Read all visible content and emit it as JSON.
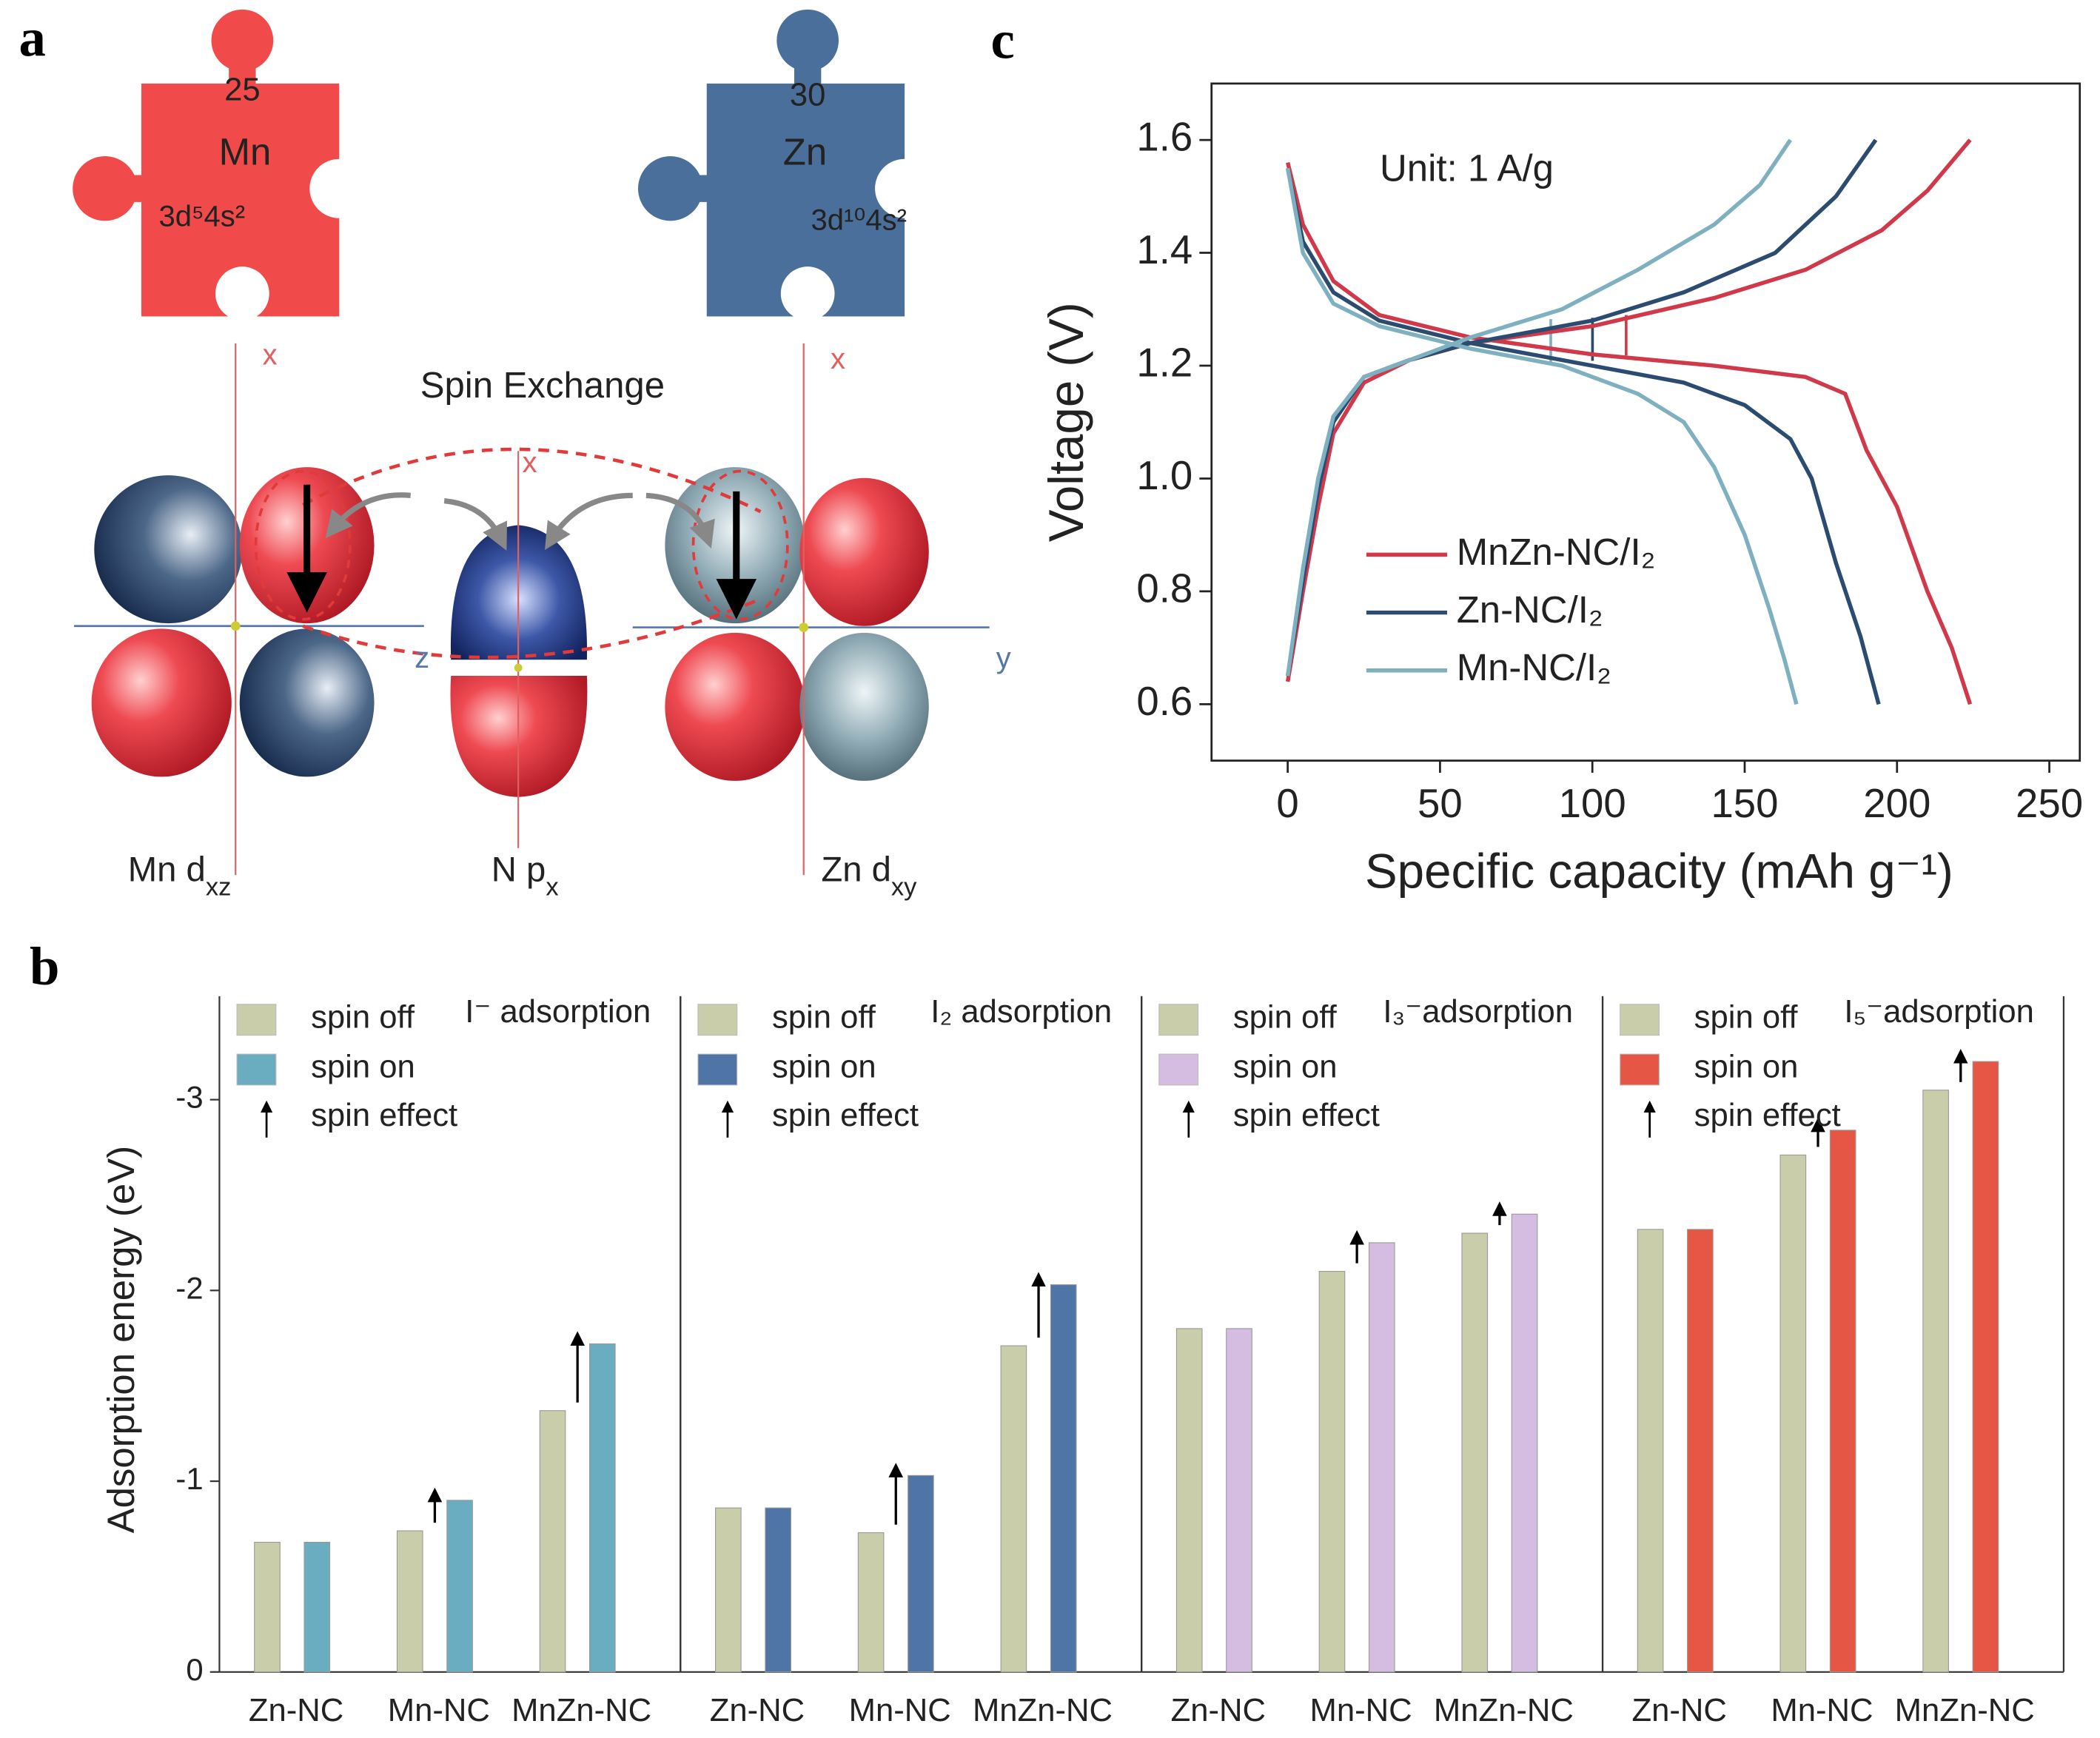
{
  "figure": {
    "panel_labels": [
      "a",
      "c",
      "b"
    ],
    "pieces": [
      {
        "number": "25",
        "symbol": "Mn",
        "config": "3d⁵4s²"
      },
      {
        "number": "30",
        "symbol": "Zn",
        "config": "3d¹⁰4s²"
      }
    ],
    "axes": [
      "x",
      "z",
      "x",
      "x",
      "y"
    ],
    "title": "Spin Exchange",
    "orbitals": [
      {
        "label": "Mn d",
        "sub": "xz"
      },
      {
        "label": "N p",
        "sub": "x"
      },
      {
        "label": "Zn d",
        "sub": "xy"
      }
    ]
  },
  "chart_data": [
    {
      "type": "line",
      "annotation": "Unit: 1 A/g",
      "xlabel": "Specific capacity (mAh g⁻¹)",
      "ylabel": "Voltage (V)",
      "xlim": [
        -25,
        260
      ],
      "ylim": [
        0.5,
        1.7
      ],
      "xticks": [
        0,
        50,
        100,
        150,
        200,
        250
      ],
      "yticks": [
        0.6,
        0.8,
        1.0,
        1.2,
        1.4,
        1.6
      ],
      "legend": "lower left",
      "series": [
        {
          "name": "MnZn-NC/I₂",
          "color": "#d0394a",
          "x": [
            0,
            5,
            15,
            30,
            60,
            100,
            140,
            170,
            183,
            190,
            200,
            210,
            218,
            224,
            null,
            0,
            5,
            10,
            15,
            25,
            40,
            60,
            100,
            140,
            170,
            195,
            210,
            224
          ],
          "values": [
            1.56,
            1.45,
            1.35,
            1.29,
            1.25,
            1.22,
            1.2,
            1.18,
            1.15,
            1.05,
            0.95,
            0.8,
            0.7,
            0.6,
            null,
            0.64,
            0.8,
            0.95,
            1.08,
            1.17,
            1.21,
            1.24,
            1.27,
            1.32,
            1.37,
            1.44,
            1.51,
            1.6
          ]
        },
        {
          "name": "Zn-NC/I₂",
          "color": "#2b4c70",
          "x": [
            0,
            5,
            15,
            30,
            60,
            100,
            130,
            150,
            165,
            172,
            180,
            188,
            194,
            null,
            0,
            5,
            10,
            15,
            25,
            40,
            60,
            100,
            130,
            160,
            180,
            193
          ],
          "values": [
            1.55,
            1.42,
            1.33,
            1.28,
            1.24,
            1.2,
            1.17,
            1.13,
            1.07,
            1.0,
            0.85,
            0.72,
            0.6,
            null,
            0.65,
            0.82,
            0.98,
            1.1,
            1.18,
            1.21,
            1.24,
            1.28,
            1.33,
            1.4,
            1.5,
            1.6
          ]
        },
        {
          "name": "Mn-NC/I₂",
          "color": "#7fb0c0",
          "x": [
            0,
            5,
            15,
            30,
            60,
            90,
            115,
            130,
            140,
            150,
            158,
            163,
            167,
            null,
            0,
            5,
            10,
            15,
            25,
            40,
            60,
            90,
            115,
            140,
            155,
            165
          ],
          "values": [
            1.55,
            1.4,
            1.31,
            1.27,
            1.23,
            1.2,
            1.15,
            1.1,
            1.02,
            0.9,
            0.77,
            0.68,
            0.6,
            null,
            0.65,
            0.84,
            1.0,
            1.11,
            1.18,
            1.21,
            1.25,
            1.3,
            1.37,
            1.45,
            1.52,
            1.6
          ]
        }
      ]
    },
    {
      "type": "bar",
      "title": "I⁻ adsorption",
      "ylabel": "Adsorption energy (eV)",
      "spin_effect_label": "spin effect",
      "categories": [
        "Zn-NC",
        "Mn-NC",
        "MnZn-NC"
      ],
      "ylim": [
        0,
        -3.5
      ],
      "yticks": [
        0,
        -1,
        -2,
        -3
      ],
      "series": [
        {
          "name": "spin off",
          "color": "#c9cdaa",
          "values": [
            -0.68,
            -0.74,
            -1.37
          ]
        },
        {
          "name": "spin on",
          "color": "#6aacc0",
          "values": [
            -0.68,
            -0.9,
            -1.72
          ]
        }
      ]
    },
    {
      "type": "bar",
      "title": "I₂ adsorption",
      "spin_effect_label": "spin effect",
      "categories": [
        "Zn-NC",
        "Mn-NC",
        "MnZn-NC"
      ],
      "ylim": [
        0,
        -3.5
      ],
      "series": [
        {
          "name": "spin off",
          "color": "#c9cdaa",
          "values": [
            -0.86,
            -0.73,
            -1.71
          ]
        },
        {
          "name": "spin on",
          "color": "#4f74a6",
          "values": [
            -0.86,
            -1.03,
            -2.03
          ]
        }
      ]
    },
    {
      "type": "bar",
      "title": "I₃⁻adsorption",
      "spin_effect_label": "spin effect",
      "categories": [
        "Zn-NC",
        "Mn-NC",
        "MnZn-NC"
      ],
      "ylim": [
        0,
        -3.5
      ],
      "series": [
        {
          "name": "spin off",
          "color": "#c9cdaa",
          "values": [
            -1.8,
            -2.1,
            -2.3
          ]
        },
        {
          "name": "spin on",
          "color": "#d4bde0",
          "values": [
            -1.8,
            -2.25,
            -2.4
          ]
        }
      ]
    },
    {
      "type": "bar",
      "title": "I₅⁻adsorption",
      "spin_effect_label": "spin effect",
      "categories": [
        "Zn-NC",
        "Mn-NC",
        "MnZn-NC"
      ],
      "ylim": [
        0,
        -3.5
      ],
      "series": [
        {
          "name": "spin off",
          "color": "#c9cdaa",
          "values": [
            -2.32,
            -2.71,
            -3.05
          ]
        },
        {
          "name": "spin on",
          "color": "#e55645",
          "values": [
            -2.32,
            -2.84,
            -3.2
          ]
        }
      ]
    }
  ]
}
